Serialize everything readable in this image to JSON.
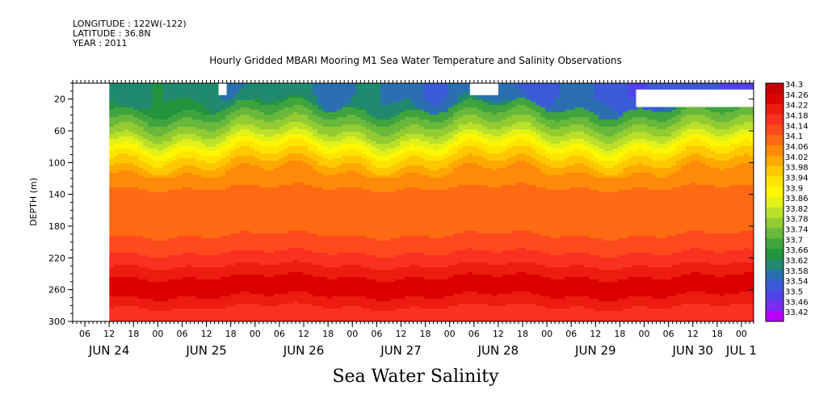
{
  "header": {
    "longitude": "LONGITUDE : 122W(-122)",
    "latitude": "LATITUDE : 36.8N",
    "year": "YEAR : 2011"
  },
  "chart_data": {
    "type": "heatmap",
    "title": "Hourly Gridded MBARI Mooring M1 Sea Water Temperature and Salinity Observations",
    "xlabel": "Sea Water Salinity",
    "ylabel": "DEPTH (m)",
    "x_range": [
      "2011-06-24T03:00",
      "2011-07-01T03:00"
    ],
    "data_start": "2011-06-24T12:00",
    "y_range": [
      300,
      0
    ],
    "y_ticks": [
      20,
      60,
      100,
      140,
      180,
      220,
      260,
      300
    ],
    "x_hour_ticks": [
      {
        "t": "2011-06-24T06:00",
        "label": "06"
      },
      {
        "t": "2011-06-24T12:00",
        "label": "12"
      },
      {
        "t": "2011-06-24T18:00",
        "label": "18"
      },
      {
        "t": "2011-06-25T00:00",
        "label": "00"
      },
      {
        "t": "2011-06-25T06:00",
        "label": "06"
      },
      {
        "t": "2011-06-25T12:00",
        "label": "12"
      },
      {
        "t": "2011-06-25T18:00",
        "label": "18"
      },
      {
        "t": "2011-06-26T00:00",
        "label": "00"
      },
      {
        "t": "2011-06-26T06:00",
        "label": "06"
      },
      {
        "t": "2011-06-26T12:00",
        "label": "12"
      },
      {
        "t": "2011-06-26T18:00",
        "label": "18"
      },
      {
        "t": "2011-06-27T00:00",
        "label": "00"
      },
      {
        "t": "2011-06-27T06:00",
        "label": "06"
      },
      {
        "t": "2011-06-27T12:00",
        "label": "12"
      },
      {
        "t": "2011-06-27T18:00",
        "label": "18"
      },
      {
        "t": "2011-06-28T00:00",
        "label": "00"
      },
      {
        "t": "2011-06-28T06:00",
        "label": "06"
      },
      {
        "t": "2011-06-28T12:00",
        "label": "12"
      },
      {
        "t": "2011-06-28T18:00",
        "label": "18"
      },
      {
        "t": "2011-06-29T00:00",
        "label": "00"
      },
      {
        "t": "2011-06-29T06:00",
        "label": "06"
      },
      {
        "t": "2011-06-29T12:00",
        "label": "12"
      },
      {
        "t": "2011-06-29T18:00",
        "label": "18"
      },
      {
        "t": "2011-06-30T00:00",
        "label": "00"
      },
      {
        "t": "2011-06-30T06:00",
        "label": "06"
      },
      {
        "t": "2011-06-30T12:00",
        "label": "12"
      },
      {
        "t": "2011-06-30T18:00",
        "label": "18"
      },
      {
        "t": "2011-07-01T00:00",
        "label": "00"
      }
    ],
    "x_day_labels": [
      {
        "t": "2011-06-24T12:00",
        "label": "JUN 24"
      },
      {
        "t": "2011-06-25T12:00",
        "label": "JUN 25"
      },
      {
        "t": "2011-06-26T12:00",
        "label": "JUN 26"
      },
      {
        "t": "2011-06-27T12:00",
        "label": "JUN 27"
      },
      {
        "t": "2011-06-28T12:00",
        "label": "JUN 28"
      },
      {
        "t": "2011-06-29T12:00",
        "label": "JUN 29"
      },
      {
        "t": "2011-06-30T12:00",
        "label": "JUN 30"
      },
      {
        "t": "2011-07-01T00:00",
        "label": "JUL 1"
      }
    ],
    "colorbar": {
      "levels": [
        "34.3",
        "34.26",
        "34.22",
        "34.18",
        "34.14",
        "34.1",
        "34.06",
        "34.02",
        "33.98",
        "33.94",
        "33.9",
        "33.86",
        "33.82",
        "33.78",
        "33.74",
        "33.7",
        "33.66",
        "33.62",
        "33.58",
        "33.54",
        "33.5",
        "33.46",
        "33.42"
      ],
      "colors": [
        "#c40000",
        "#dc0000",
        "#ee1c10",
        "#fa3020",
        "#ff4a1e",
        "#ff6a12",
        "#ff8a0a",
        "#ffa800",
        "#ffc800",
        "#ffe400",
        "#fff600",
        "#e2f218",
        "#bae02a",
        "#92cc32",
        "#68b83c",
        "#40a43e",
        "#22943e",
        "#1f8a6e",
        "#2a70b0",
        "#3a5ad8",
        "#5044e8",
        "#7a2cf0",
        "#b800ff"
      ]
    },
    "depth_profile": [
      {
        "depth": 10,
        "value": 33.63
      },
      {
        "depth": 20,
        "value": 33.64
      },
      {
        "depth": 30,
        "value": 33.66
      },
      {
        "depth": 40,
        "value": 33.7
      },
      {
        "depth": 50,
        "value": 33.74
      },
      {
        "depth": 60,
        "value": 33.78
      },
      {
        "depth": 70,
        "value": 33.83
      },
      {
        "depth": 80,
        "value": 33.89
      },
      {
        "depth": 90,
        "value": 33.94
      },
      {
        "depth": 100,
        "value": 33.98
      },
      {
        "depth": 110,
        "value": 34.02
      },
      {
        "depth": 120,
        "value": 34.05
      },
      {
        "depth": 140,
        "value": 34.07
      },
      {
        "depth": 160,
        "value": 34.08
      },
      {
        "depth": 180,
        "value": 34.09
      },
      {
        "depth": 200,
        "value": 34.11
      },
      {
        "depth": 220,
        "value": 34.16
      },
      {
        "depth": 240,
        "value": 34.21
      },
      {
        "depth": 250,
        "value": 34.25
      },
      {
        "depth": 260,
        "value": 34.24
      },
      {
        "depth": 280,
        "value": 34.18
      },
      {
        "depth": 300,
        "value": 34.16
      }
    ],
    "missing_regions": [
      {
        "t0": "2011-06-25T15:00",
        "t1": "2011-06-25T17:00",
        "d0": 0,
        "d1": 15
      },
      {
        "t0": "2011-06-28T05:00",
        "t1": "2011-06-28T12:00",
        "d0": 0,
        "d1": 15
      },
      {
        "t0": "2011-06-29T22:00",
        "t1": "2011-07-01T03:00",
        "d0": 8,
        "d1": 30
      }
    ]
  }
}
